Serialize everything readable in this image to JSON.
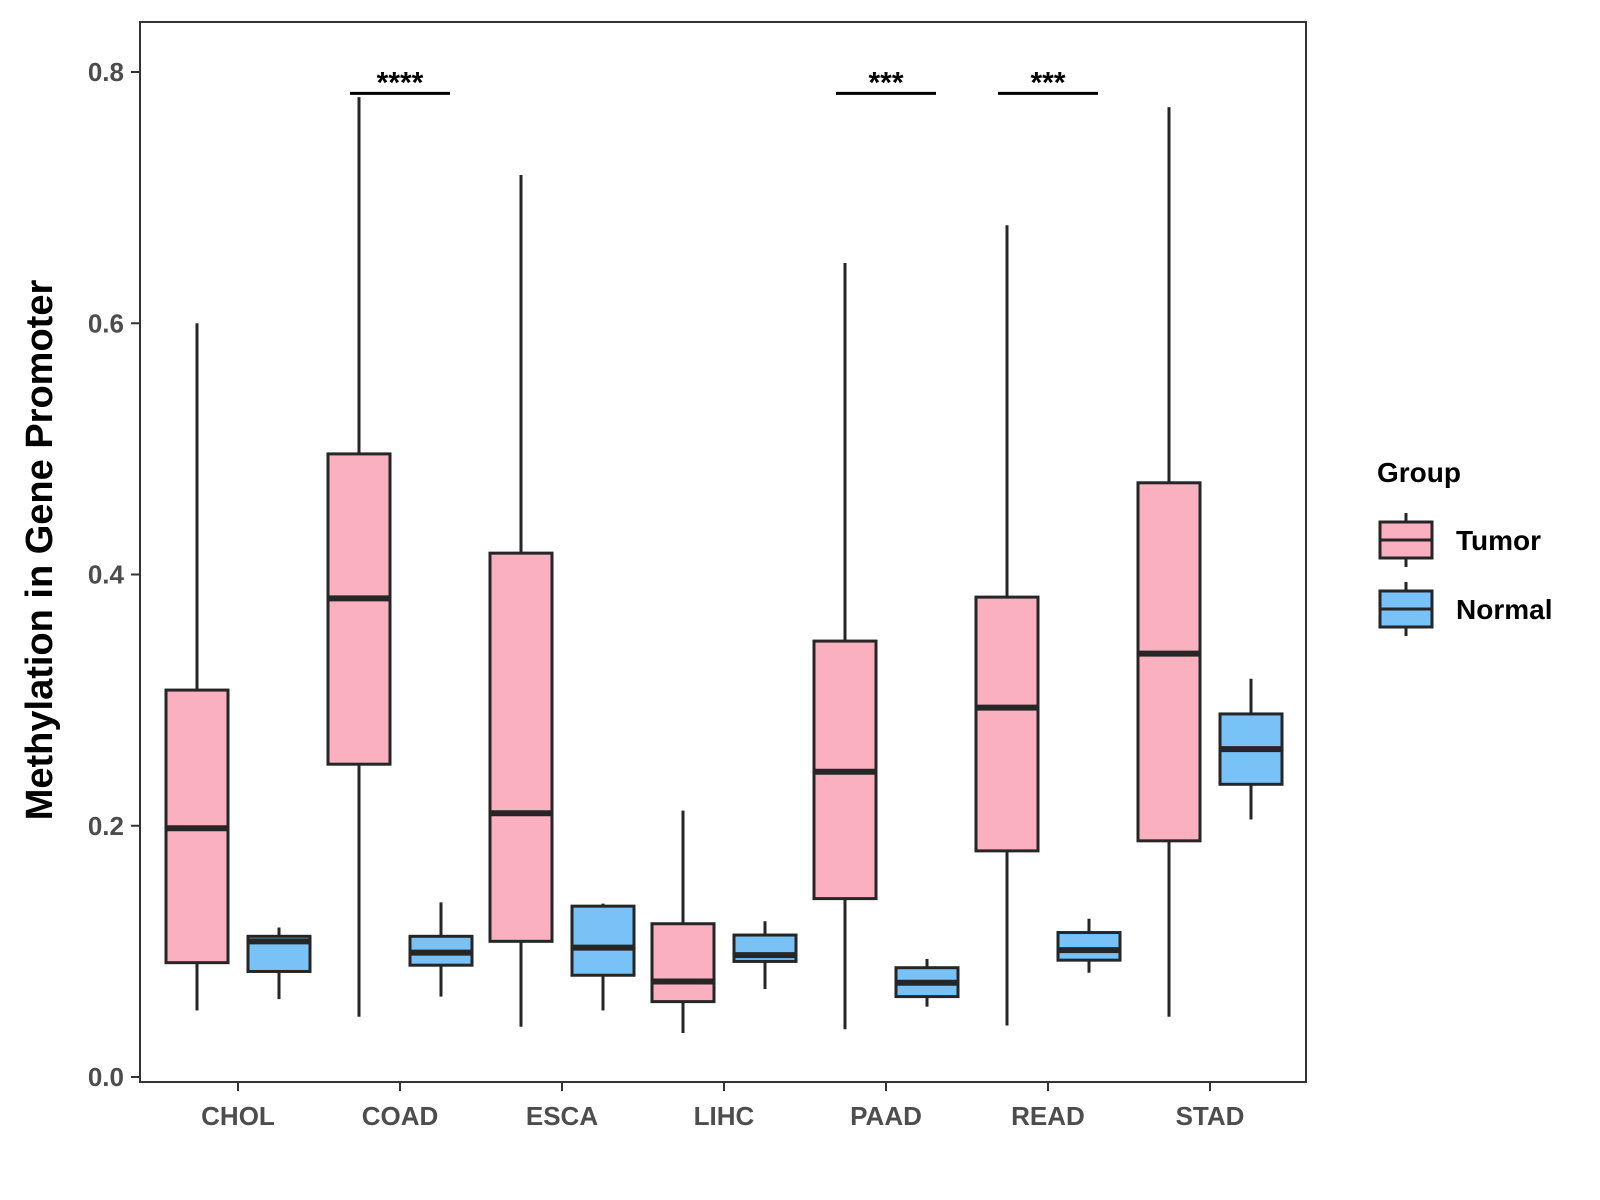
{
  "colors": {
    "tumor": "#fbb0c0",
    "normal": "#78c2f8",
    "stroke": "#262626",
    "axis": "#333333"
  },
  "chart_data": {
    "type": "boxplot",
    "title": "",
    "xlabel": "",
    "ylabel": "Methylation in Gene Promoter",
    "ylim": [
      0,
      0.82
    ],
    "yticks": [
      0.0,
      0.2,
      0.4,
      0.6,
      0.8
    ],
    "ytick_labels": [
      "0.0",
      "0.2",
      "0.4",
      "0.6",
      "0.8"
    ],
    "categories": [
      "CHOL",
      "COAD",
      "ESCA",
      "LIHC",
      "PAAD",
      "READ",
      "STAD"
    ],
    "legend": {
      "title": "Group",
      "position": "right",
      "entries": [
        {
          "label": "Tumor",
          "color_key": "tumor"
        },
        {
          "label": "Normal",
          "color_key": "normal"
        }
      ]
    },
    "series": [
      {
        "name": "Tumor",
        "color_key": "tumor",
        "boxes": [
          {
            "category": "CHOL",
            "min": 0.053,
            "q1": 0.091,
            "median": 0.198,
            "q3": 0.308,
            "max": 0.6
          },
          {
            "category": "COAD",
            "min": 0.048,
            "q1": 0.249,
            "median": 0.381,
            "q3": 0.496,
            "max": 0.78
          },
          {
            "category": "ESCA",
            "min": 0.04,
            "q1": 0.108,
            "median": 0.21,
            "q3": 0.417,
            "max": 0.718
          },
          {
            "category": "LIHC",
            "min": 0.035,
            "q1": 0.06,
            "median": 0.076,
            "q3": 0.122,
            "max": 0.212
          },
          {
            "category": "PAAD",
            "min": 0.038,
            "q1": 0.142,
            "median": 0.243,
            "q3": 0.347,
            "max": 0.648
          },
          {
            "category": "READ",
            "min": 0.041,
            "q1": 0.18,
            "median": 0.294,
            "q3": 0.382,
            "max": 0.678
          },
          {
            "category": "STAD",
            "min": 0.048,
            "q1": 0.188,
            "median": 0.337,
            "q3": 0.473,
            "max": 0.772
          }
        ]
      },
      {
        "name": "Normal",
        "color_key": "normal",
        "boxes": [
          {
            "category": "CHOL",
            "min": 0.062,
            "q1": 0.084,
            "median": 0.108,
            "q3": 0.112,
            "max": 0.119
          },
          {
            "category": "COAD",
            "min": 0.064,
            "q1": 0.089,
            "median": 0.099,
            "q3": 0.112,
            "max": 0.139
          },
          {
            "category": "ESCA",
            "min": 0.053,
            "q1": 0.081,
            "median": 0.103,
            "q3": 0.136,
            "max": 0.138
          },
          {
            "category": "LIHC",
            "min": 0.07,
            "q1": 0.092,
            "median": 0.097,
            "q3": 0.113,
            "max": 0.124
          },
          {
            "category": "PAAD",
            "min": 0.056,
            "q1": 0.064,
            "median": 0.075,
            "q3": 0.087,
            "max": 0.094
          },
          {
            "category": "READ",
            "min": 0.083,
            "q1": 0.093,
            "median": 0.101,
            "q3": 0.115,
            "max": 0.126
          },
          {
            "category": "STAD",
            "min": 0.205,
            "q1": 0.233,
            "median": 0.261,
            "q3": 0.289,
            "max": 0.317
          }
        ]
      }
    ],
    "annotations": [
      {
        "category": "COAD",
        "text": "****",
        "y": 0.783
      },
      {
        "category": "PAAD",
        "text": "***",
        "y": 0.783
      },
      {
        "category": "READ",
        "text": "***",
        "y": 0.783
      }
    ]
  }
}
